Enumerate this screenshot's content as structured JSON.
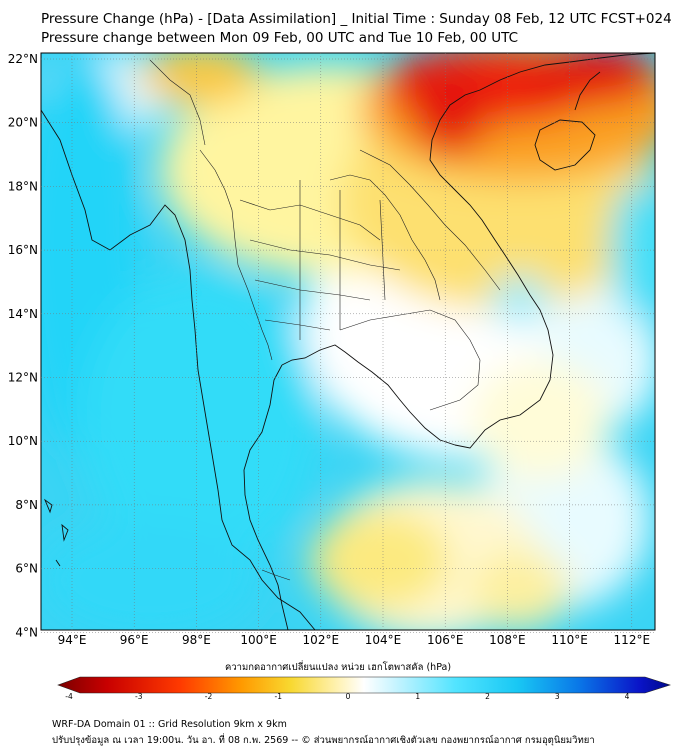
{
  "title_line1": "Pressure Change (hPa) - [Data Assimilation] _ Initial Time : Sunday 08 Feb, 12 UTC FCST+024",
  "title_line2": "Pressure change between Mon 09 Feb, 00 UTC and Tue 10 Feb, 00 UTC",
  "lat_labels": [
    "22°N",
    "20°N",
    "18°N",
    "16°N",
    "14°N",
    "12°N",
    "10°N",
    "8°N",
    "6°N",
    "4°N"
  ],
  "lon_labels": [
    "94°E",
    "96°E",
    "98°E",
    "100°E",
    "102°E",
    "104°E",
    "106°E",
    "108°E",
    "110°E",
    "112°E"
  ],
  "colorbar": {
    "label": "ความกดอากาศเปลี่ยนแปลง หน่วย เฮกโตพาสคัล (hPa)",
    "ticks": [
      "-4",
      "-3",
      "-2",
      "-1",
      "0",
      "1",
      "2",
      "3",
      "4"
    ],
    "min": -4,
    "max": 4
  },
  "footer_line1": "WRF-DA Domain 01 :: Grid Resolution 9km x 9km",
  "footer_line2": "ปรับปรุงข้อมูล ณ เวลา 19:00น. วัน อา. ที่ 08 ก.พ. 2569 -- © ส่วนพยากรณ์อากาศเชิงตัวเลข กองพยากรณ์อากาศ กรมอุตุนิยมวิทยา",
  "colors": {
    "strong_rise": "#d7000a",
    "rise": "#f8e24a",
    "neutral": "#fffbe8",
    "fall": "#19dcfb",
    "strong_fall": "#0a14c8",
    "coastline": "#000000",
    "border": "#1a1a1a"
  }
}
